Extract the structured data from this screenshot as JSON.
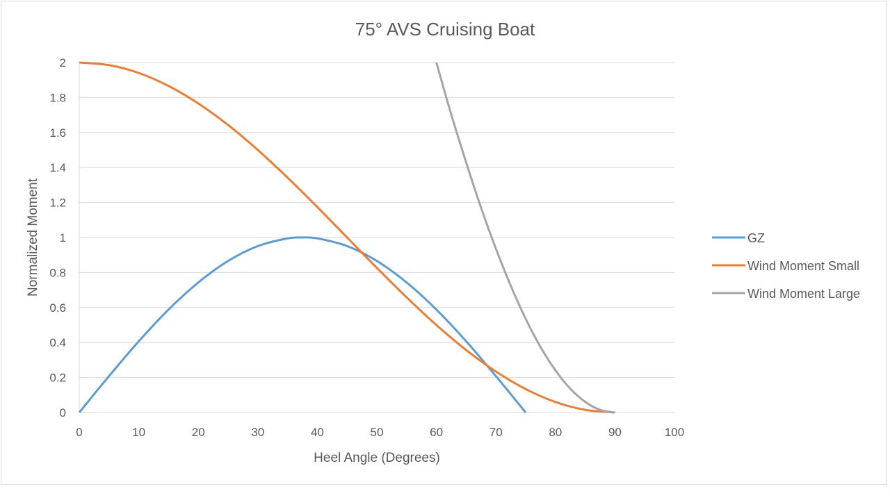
{
  "chart_data": {
    "type": "line",
    "title": "75° AVS Cruising Boat",
    "xlabel": "Heel Angle (Degrees)",
    "ylabel": "Normalized Moment",
    "xlim": [
      0,
      100
    ],
    "ylim": [
      0,
      2
    ],
    "xticks": [
      "0",
      "10",
      "20",
      "30",
      "40",
      "50",
      "60",
      "70",
      "80",
      "90",
      "100"
    ],
    "yticks": [
      "0",
      "0.2",
      "0.4",
      "0.6",
      "0.8",
      "1",
      "1.2",
      "1.4",
      "1.6",
      "1.8",
      "2"
    ],
    "grid": "horizontal",
    "legend_position": "right",
    "series": [
      {
        "name": "GZ",
        "color": "#5b9bd5",
        "x": [
          0,
          5,
          10,
          15,
          20,
          25,
          30,
          35,
          37.5,
          40,
          45,
          50,
          55,
          60,
          65,
          70,
          75
        ],
        "y": [
          0,
          0.208,
          0.407,
          0.588,
          0.743,
          0.866,
          0.951,
          0.995,
          1.0,
          0.995,
          0.951,
          0.866,
          0.743,
          0.588,
          0.407,
          0.208,
          0
        ]
      },
      {
        "name": "Wind Moment Small",
        "color": "#ed7d31",
        "x": [
          0,
          5,
          10,
          15,
          20,
          25,
          30,
          35,
          40,
          45,
          50,
          55,
          60,
          65,
          70,
          75,
          80,
          85,
          90
        ],
        "y": [
          2,
          1.985,
          1.94,
          1.866,
          1.766,
          1.643,
          1.5,
          1.342,
          1.174,
          1.0,
          0.826,
          0.658,
          0.5,
          0.357,
          0.234,
          0.134,
          0.06,
          0.015,
          0
        ]
      },
      {
        "name": "Wind Moment Large",
        "color": "#a5a5a5",
        "x": [
          60,
          62.5,
          65,
          67.5,
          70,
          72.5,
          75,
          77.5,
          80,
          82.5,
          85,
          87.5,
          90
        ],
        "y": [
          2,
          1.703,
          1.429,
          1.171,
          0.936,
          0.724,
          0.536,
          0.374,
          0.241,
          0.136,
          0.061,
          0.015,
          0
        ]
      }
    ]
  }
}
